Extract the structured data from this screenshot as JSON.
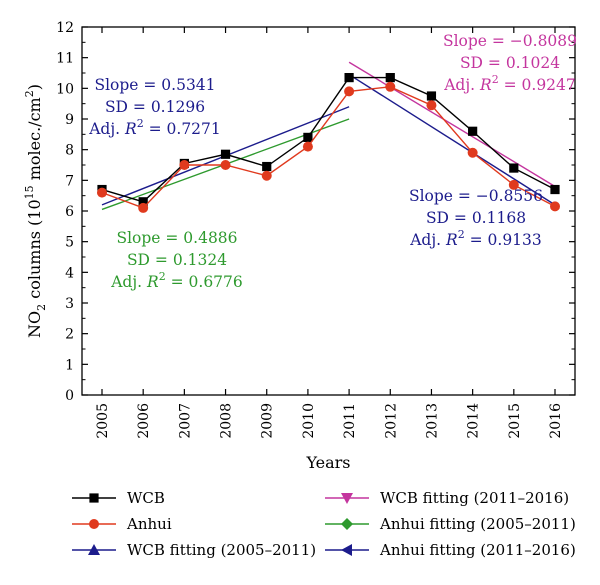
{
  "chart_data": {
    "type": "line",
    "xlabel": "Years",
    "ylabel_prefix": "NO",
    "ylabel_sub": "2",
    "ylabel_mid": " columns (10",
    "ylabel_sup": "15",
    "ylabel_after": " molec./cm",
    "ylabel_sup2": "2",
    "ylabel_end": ")",
    "ylim": [
      0,
      12
    ],
    "yticks": [
      0,
      1,
      2,
      3,
      4,
      5,
      6,
      7,
      8,
      9,
      10,
      11,
      12
    ],
    "x": [
      "2005",
      "2006",
      "2007",
      "2008",
      "2009",
      "2010",
      "2011",
      "2012",
      "2013",
      "2014",
      "2015",
      "2016"
    ],
    "series": [
      {
        "name": "WCB",
        "color": "#000000",
        "marker": "square",
        "values": [
          6.7,
          6.3,
          7.55,
          7.85,
          7.45,
          8.4,
          10.35,
          10.35,
          9.75,
          8.6,
          7.4,
          6.7
        ]
      },
      {
        "name": "Anhui",
        "color": "#e03a1e",
        "marker": "circle",
        "values": [
          6.6,
          6.1,
          7.5,
          7.5,
          7.15,
          8.1,
          9.9,
          10.05,
          9.45,
          7.9,
          6.85,
          6.15
        ]
      }
    ],
    "fits": [
      {
        "name": "WCB fitting (2005–2011)",
        "color": "#1c1c8c",
        "marker": "triangle-up",
        "x_range": [
          "2005",
          "2011"
        ],
        "y_start": 6.2,
        "y_end": 9.4
      },
      {
        "name": "Anhui fitting (2005–2011)",
        "color": "#2e9a2e",
        "marker": "diamond",
        "x_range": [
          "2005",
          "2011"
        ],
        "y_start": 6.05,
        "y_end": 9.0
      },
      {
        "name": "WCB fitting (2011–2016)",
        "color": "#c4359e",
        "marker": "triangle-down",
        "x_range": [
          "2011",
          "2016"
        ],
        "y_start": 10.85,
        "y_end": 6.8
      },
      {
        "name": "Anhui fitting (2011–2016)",
        "color": "#1c1c8c",
        "marker": "triangle-left",
        "x_range": [
          "2011",
          "2016"
        ],
        "y_start": 10.45,
        "y_end": 6.2
      }
    ],
    "legend_order": [
      0,
      3,
      1,
      4,
      2,
      5
    ],
    "annotations": [
      {
        "id": "wcb-early",
        "color": "#1c1c8c",
        "slope": "Slope = 0.5341",
        "sd": "SD = 0.1296",
        "adj_prefix": "Adj. ",
        "r": "R",
        "sq": "2",
        "adj_value": " = 0.7271"
      },
      {
        "id": "anhui-early",
        "color": "#2e9a2e",
        "slope": "Slope = 0.4886",
        "sd": "SD = 0.1324",
        "adj_prefix": "Adj. ",
        "r": "R",
        "sq": "2",
        "adj_value": " = 0.6776"
      },
      {
        "id": "wcb-late",
        "color": "#c4359e",
        "slope": "Slope = −0.8089",
        "sd": "SD = 0.1024",
        "adj_prefix": "Adj. ",
        "r": "R",
        "sq": "2",
        "adj_value": " = 0.9247"
      },
      {
        "id": "anhui-late",
        "color": "#1c1c8c",
        "slope": "Slope = −0.8556",
        "sd": "SD = 0.1168",
        "adj_prefix": "Adj. ",
        "r": "R",
        "sq": "2",
        "adj_value": " = 0.9133"
      }
    ],
    "grid": false,
    "legend_placement": "bottom"
  }
}
